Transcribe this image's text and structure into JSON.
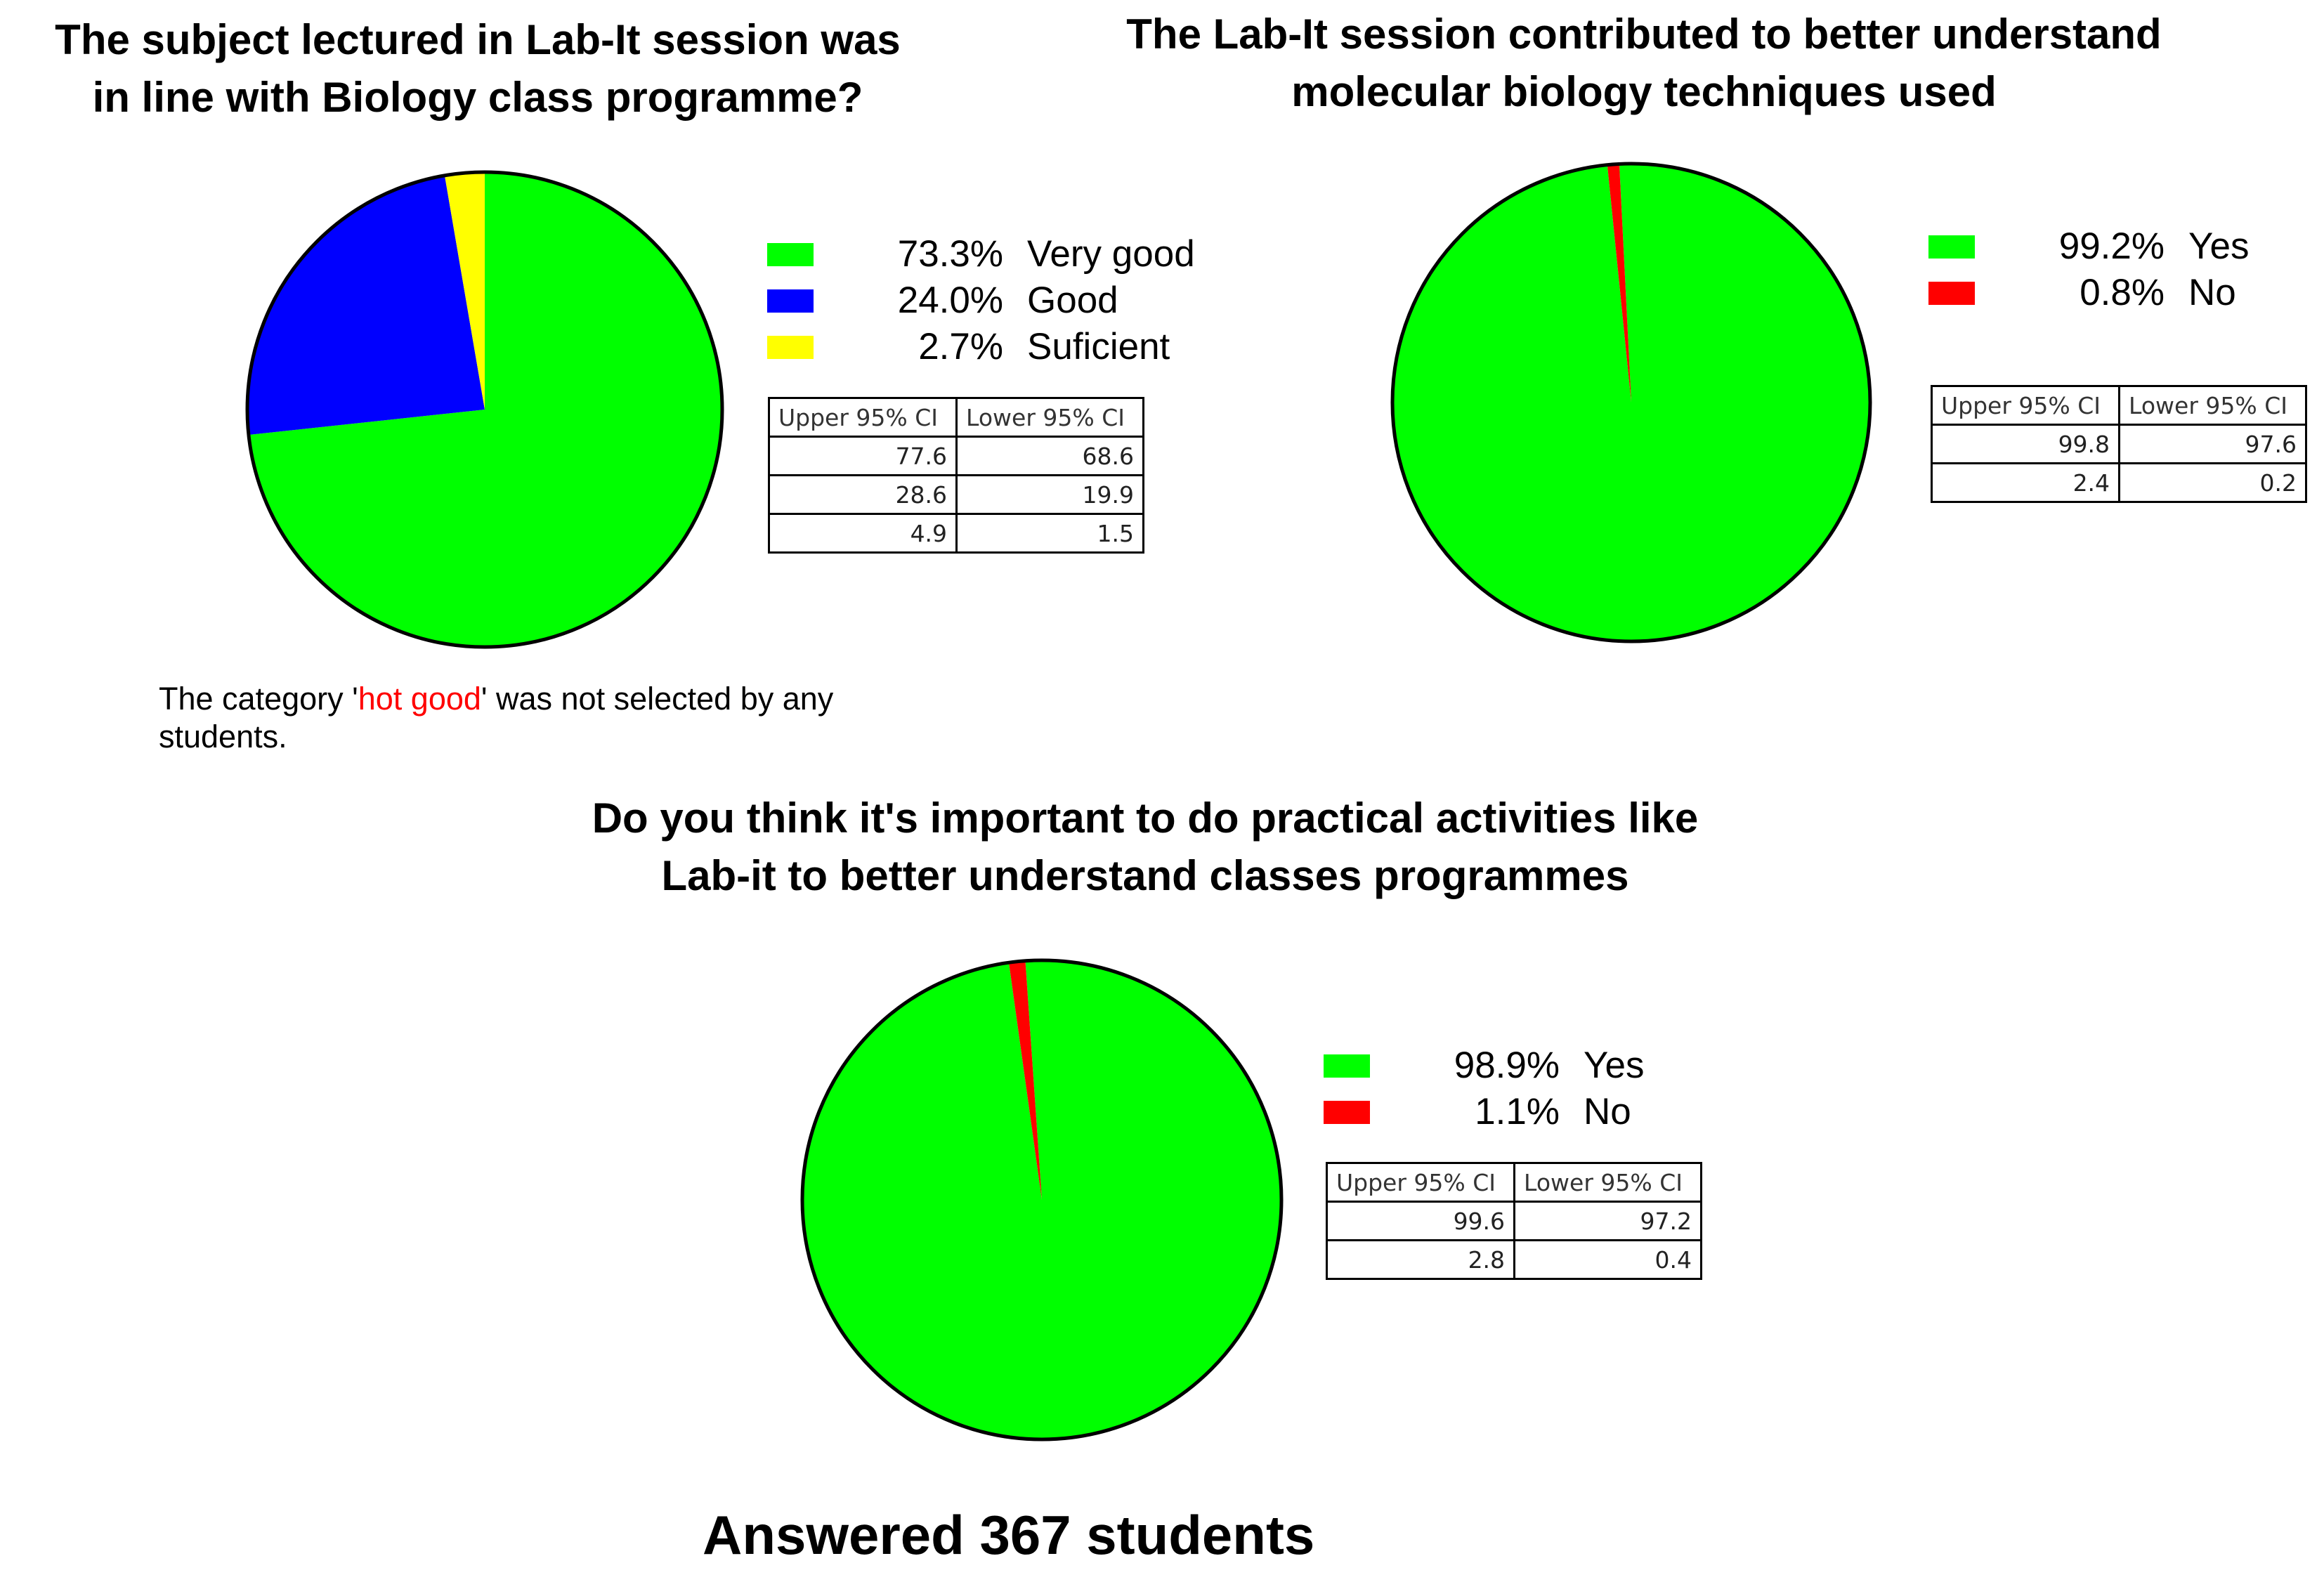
{
  "colors": {
    "green": "#00ff00",
    "blue": "#0000ff",
    "yellow": "#ffff00",
    "red": "#ff0000",
    "outline": "#000000"
  },
  "chart_data": [
    {
      "type": "pie",
      "title": [
        "The subject lectured in Lab-It session was",
        "in line with Biology class programme?"
      ],
      "slices": [
        {
          "label": "Very good",
          "value": 73.3,
          "value_label": "73.3%",
          "color": "#00ff00"
        },
        {
          "label": "Good",
          "value": 24.0,
          "value_label": "24.0%",
          "color": "#0000ff"
        },
        {
          "label": "Suficient",
          "value": 2.7,
          "value_label": "2.7%",
          "color": "#ffff00"
        }
      ],
      "start_angle_deg": 0,
      "legend_position": "right",
      "ci_table": {
        "headers": [
          "Upper 95% CI",
          "Lower 95% CI"
        ],
        "rows": [
          [
            "77.6",
            "68.6"
          ],
          [
            "28.6",
            "19.9"
          ],
          [
            "4.9",
            "1.5"
          ]
        ]
      },
      "note": {
        "before": "The category '",
        "highlight": "hot good",
        "after": "' was not selected by any students."
      }
    },
    {
      "type": "pie",
      "title": [
        "The Lab-It session contributed to better understand",
        "molecular biology techniques used"
      ],
      "slices": [
        {
          "label": "Yes",
          "value": 99.2,
          "value_label": "99.2%",
          "color": "#00ff00"
        },
        {
          "label": "No",
          "value": 0.8,
          "value_label": "0.8%",
          "color": "#ff0000"
        }
      ],
      "start_angle_deg": -2.88,
      "legend_position": "right",
      "ci_table": {
        "headers": [
          "Upper 95% CI",
          "Lower 95% CI"
        ],
        "rows": [
          [
            "99.8",
            "97.6"
          ],
          [
            "2.4",
            "0.2"
          ]
        ]
      }
    },
    {
      "type": "pie",
      "title": [
        "Do you think it's important to do practical activities like",
        "Lab-it to better understand classes programmes"
      ],
      "slices": [
        {
          "label": "Yes",
          "value": 98.9,
          "value_label": "98.9%",
          "color": "#00ff00"
        },
        {
          "label": "No",
          "value": 1.1,
          "value_label": "1.1%",
          "color": "#ff0000"
        }
      ],
      "start_angle_deg": -3.96,
      "legend_position": "right",
      "ci_table": {
        "headers": [
          "Upper 95% CI",
          "Lower 95% CI"
        ],
        "rows": [
          [
            "99.6",
            "97.2"
          ],
          [
            "2.8",
            "0.4"
          ]
        ]
      }
    }
  ],
  "footer": "Answered 367 students"
}
